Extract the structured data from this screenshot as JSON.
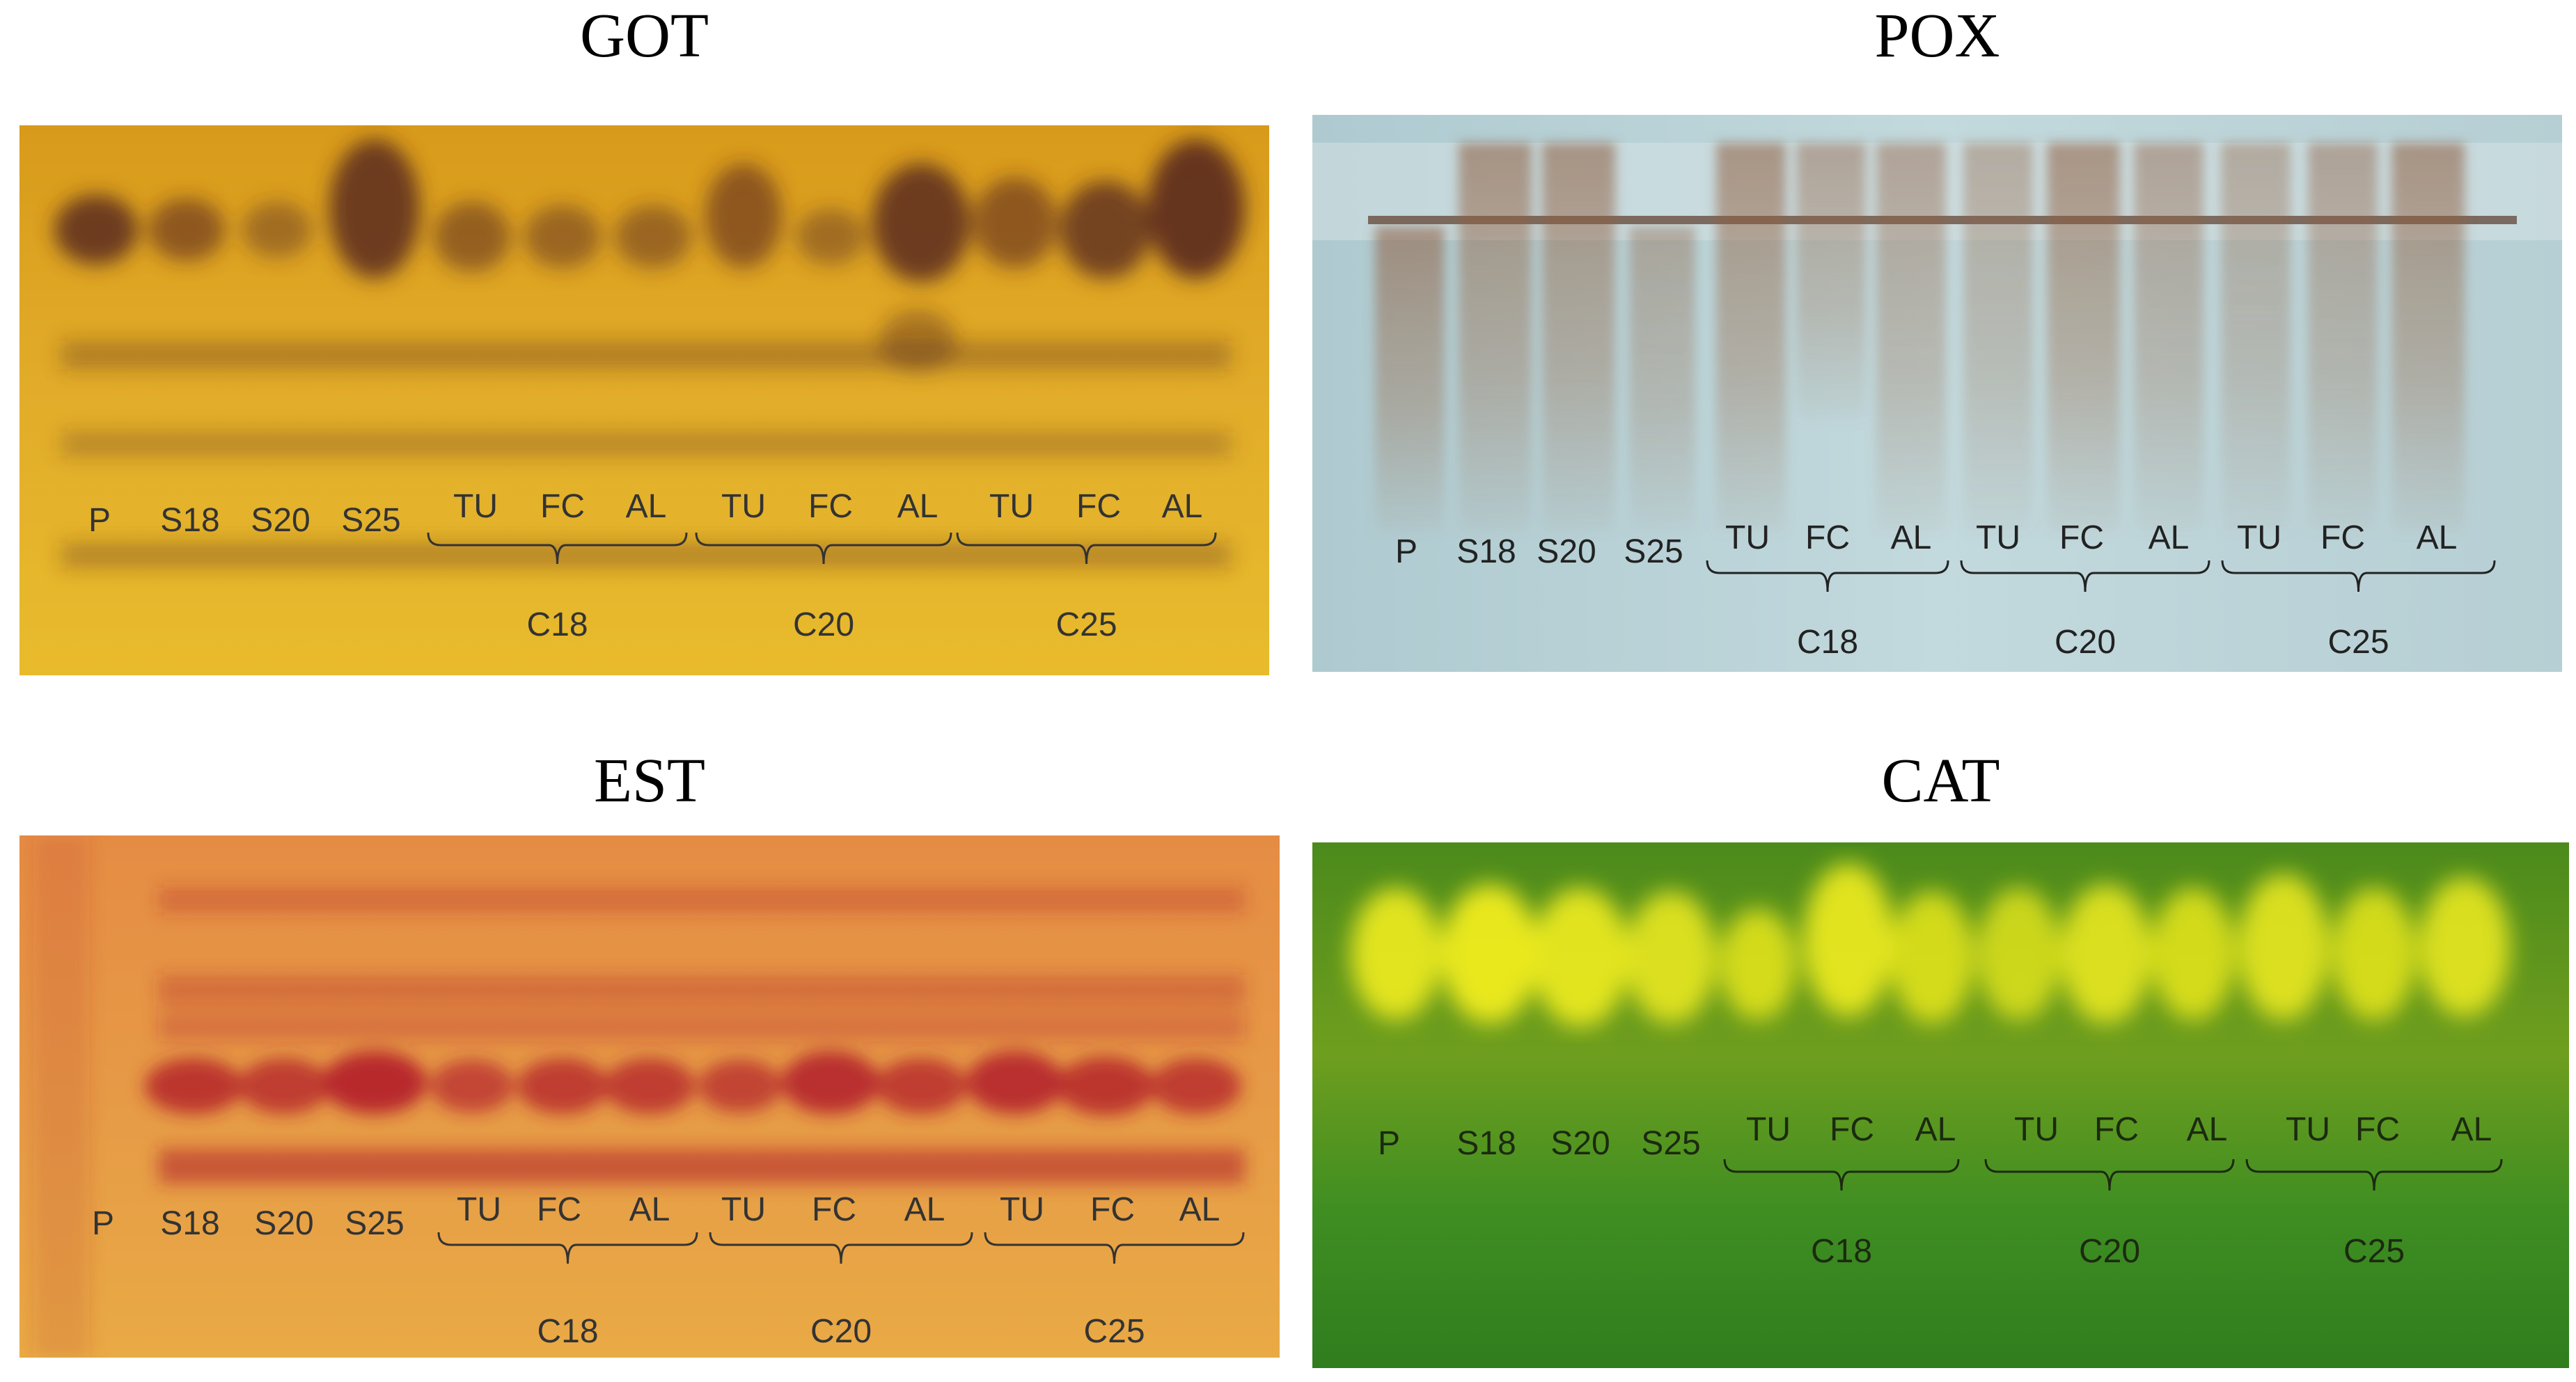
{
  "panels": [
    {
      "id": "got",
      "title": "GOT",
      "bg": "#e3a91f",
      "band": "#5a2e1a"
    },
    {
      "id": "pox",
      "title": "POX",
      "bg": "#b9d3d8",
      "band": "#8a5a3a"
    },
    {
      "id": "est",
      "title": "EST",
      "bg": "#e6963e",
      "band": "#b3262a"
    },
    {
      "id": "cat",
      "title": "CAT",
      "bg": "#3f8a1f",
      "band": "#f2ee1a"
    }
  ],
  "lanes": [
    "P",
    "S18",
    "S20",
    "S25",
    "TU",
    "FC",
    "AL",
    "TU",
    "FC",
    "AL",
    "TU",
    "FC",
    "AL"
  ],
  "groups": [
    "C18",
    "C20",
    "C25"
  ]
}
